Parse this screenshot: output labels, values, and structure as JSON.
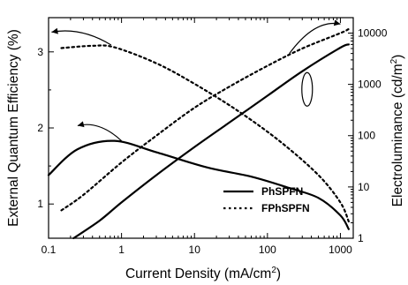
{
  "chart_data": {
    "type": "line",
    "xlabel": "Current Density (mA/cm",
    "xlabel_sup": "2",
    "xlabel_end": ")",
    "ylabel_left": "External Quantum Efficiency (%)",
    "ylabel_right": "Electroluminance (cd/m",
    "ylabel_right_sup": "2",
    "ylabel_right_end": ")",
    "x_scale": "log",
    "xlim": [
      0.1,
      1500
    ],
    "ylim_left": [
      0.55,
      3.45
    ],
    "ylim_right": [
      1,
      20000
    ],
    "y_right_scale": "log",
    "grid": false,
    "legend_position": "lower-right",
    "x_ticks": [
      {
        "v": 0.1,
        "label": "0.1"
      },
      {
        "v": 1,
        "label": "1"
      },
      {
        "v": 10,
        "label": "10"
      },
      {
        "v": 100,
        "label": "100"
      },
      {
        "v": 1000,
        "label": "1000"
      }
    ],
    "y_left_ticks": [
      {
        "v": 1,
        "label": "1"
      },
      {
        "v": 2,
        "label": "2"
      },
      {
        "v": 3,
        "label": "3"
      }
    ],
    "y_right_ticks": [
      {
        "v": 1,
        "label": "1"
      },
      {
        "v": 10,
        "label": "10"
      },
      {
        "v": 100,
        "label": "100"
      },
      {
        "v": 1000,
        "label": "1000"
      },
      {
        "v": 10000,
        "label": "10000"
      }
    ],
    "series": [
      {
        "name": "PhSPFN",
        "style": "solid",
        "axis": "left",
        "quantity": "efficiency",
        "x": [
          0.1,
          0.25,
          0.8,
          3,
          15,
          60,
          200,
          500,
          1000,
          1300
        ],
        "y": [
          1.38,
          1.72,
          1.83,
          1.68,
          1.48,
          1.36,
          1.21,
          1.08,
          0.85,
          0.67
        ]
      },
      {
        "name": "FPhSPFN",
        "style": "dotted",
        "axis": "left",
        "quantity": "efficiency",
        "x": [
          0.15,
          0.4,
          0.8,
          3,
          10,
          40,
          150,
          500,
          1000,
          1300
        ],
        "y": [
          3.05,
          3.08,
          3.06,
          2.85,
          2.58,
          2.22,
          1.82,
          1.38,
          1.02,
          0.77
        ]
      },
      {
        "name": "PhSPFN",
        "style": "solid",
        "axis": "right",
        "quantity": "luminance",
        "x": [
          0.22,
          0.5,
          1,
          3,
          10,
          30,
          100,
          300,
          1000,
          1300
        ],
        "y": [
          1,
          2.2,
          5,
          17,
          60,
          180,
          600,
          1800,
          5200,
          6000
        ]
      },
      {
        "name": "FPhSPFN",
        "style": "dotted",
        "axis": "right",
        "quantity": "luminance",
        "x": [
          0.15,
          0.3,
          1,
          3,
          10,
          30,
          100,
          300,
          1000,
          1300
        ],
        "y": [
          3.5,
          7,
          30,
          100,
          350,
          900,
          2300,
          5000,
          10000,
          12000
        ]
      }
    ],
    "annotations": [
      {
        "type": "arrow",
        "points_to": "left-axis",
        "from": [
          0.72,
          3.09
        ],
        "to": [
          0.11,
          3.26
        ]
      },
      {
        "type": "arrow",
        "points_to": "left-axis",
        "from": [
          1.0,
          1.83
        ],
        "to": [
          0.25,
          2.03
        ]
      },
      {
        "type": "arrow",
        "points_to": "right-axis",
        "from": [
          200,
          4000
        ],
        "to": [
          1000,
          15000
        ]
      },
      {
        "type": "ellipse",
        "center": [
          350,
          800
        ],
        "encloses": "luminance-curves"
      }
    ]
  }
}
